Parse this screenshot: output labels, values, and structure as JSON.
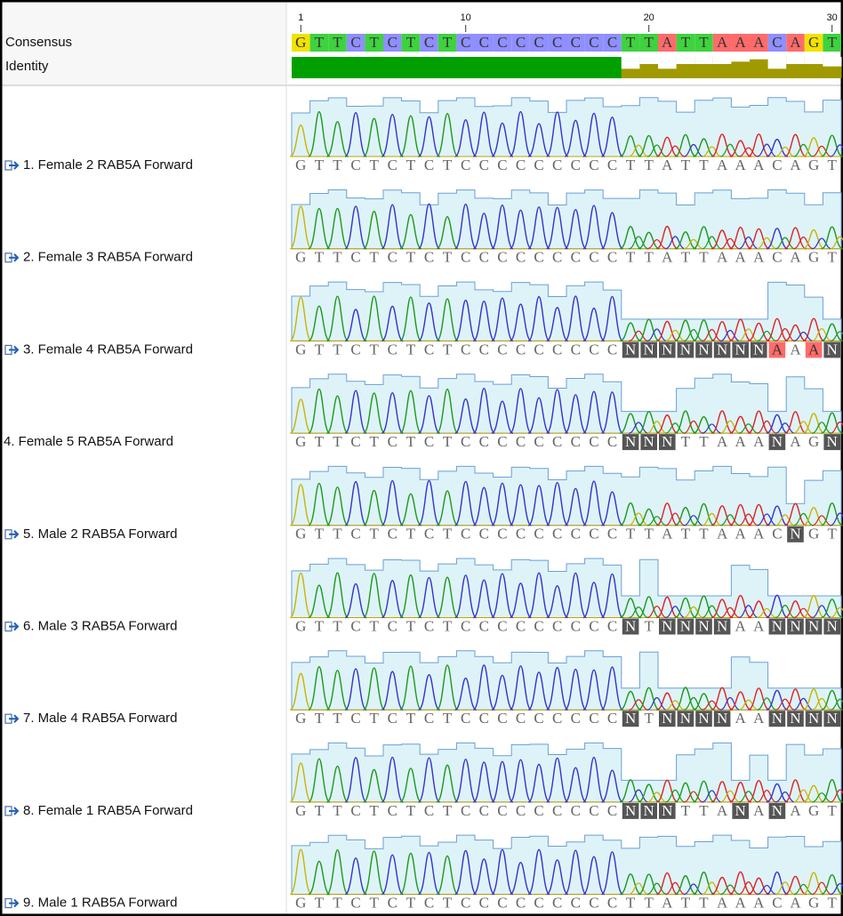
{
  "ruler": [
    1,
    10,
    20,
    30
  ],
  "consensus": {
    "label": "Consensus",
    "sequence": [
      "G",
      "T",
      "T",
      "C",
      "T",
      "C",
      "T",
      "C",
      "T",
      "C",
      "C",
      "C",
      "C",
      "C",
      "C",
      "C",
      "C",
      "C",
      "T",
      "T",
      "A",
      "T",
      "T",
      "A",
      "A",
      "A",
      "C",
      "A",
      "G",
      "T"
    ]
  },
  "identity": {
    "label": "Identity"
  },
  "tracks": [
    {
      "label": "1. Female 2 RAB5A Forward",
      "icon": true,
      "sequence": [
        "G",
        "T",
        "T",
        "C",
        "T",
        "C",
        "T",
        "C",
        "T",
        "C",
        "C",
        "C",
        "C",
        "C",
        "C",
        "C",
        "C",
        "C",
        "T",
        "T",
        "A",
        "T",
        "T",
        "A",
        "A",
        "A",
        "C",
        "A",
        "G",
        "T"
      ]
    },
    {
      "label": "2. Female 3 RAB5A Forward",
      "icon": true,
      "sequence": [
        "G",
        "T",
        "T",
        "C",
        "T",
        "C",
        "T",
        "C",
        "T",
        "C",
        "C",
        "C",
        "C",
        "C",
        "C",
        "C",
        "C",
        "C",
        "T",
        "T",
        "A",
        "T",
        "T",
        "A",
        "A",
        "A",
        "C",
        "A",
        "G",
        "T"
      ]
    },
    {
      "label": "3. Female 4 RAB5A Forward",
      "icon": true,
      "sequence": [
        "G",
        "T",
        "T",
        "C",
        "T",
        "C",
        "T",
        "C",
        "T",
        "C",
        "C",
        "C",
        "C",
        "C",
        "C",
        "C",
        "C",
        "C",
        "N",
        "N",
        "N",
        "N",
        "N",
        "N",
        "N",
        "N",
        "A",
        "A",
        "A",
        "N"
      ]
    },
    {
      "label": "4. Female 5 RAB5A Forward",
      "icon": false,
      "sequence": [
        "G",
        "T",
        "T",
        "C",
        "T",
        "C",
        "T",
        "C",
        "T",
        "C",
        "C",
        "C",
        "C",
        "C",
        "C",
        "C",
        "C",
        "C",
        "N",
        "N",
        "N",
        "T",
        "T",
        "A",
        "A",
        "A",
        "N",
        "A",
        "G",
        "N"
      ]
    },
    {
      "label": "5. Male 2 RAB5A Forward",
      "icon": true,
      "sequence": [
        "G",
        "T",
        "T",
        "C",
        "T",
        "C",
        "T",
        "C",
        "T",
        "C",
        "C",
        "C",
        "C",
        "C",
        "C",
        "C",
        "C",
        "C",
        "T",
        "T",
        "A",
        "T",
        "T",
        "A",
        "A",
        "A",
        "C",
        "N",
        "G",
        "T"
      ]
    },
    {
      "label": "6. Male 3 RAB5A Forward",
      "icon": true,
      "sequence": [
        "G",
        "T",
        "T",
        "C",
        "T",
        "C",
        "T",
        "C",
        "T",
        "C",
        "C",
        "C",
        "C",
        "C",
        "C",
        "C",
        "C",
        "C",
        "N",
        "T",
        "N",
        "N",
        "N",
        "N",
        "A",
        "A",
        "N",
        "N",
        "N",
        "N"
      ]
    },
    {
      "label": "7. Male 4 RAB5A Forward",
      "icon": true,
      "sequence": [
        "G",
        "T",
        "T",
        "C",
        "T",
        "C",
        "T",
        "C",
        "T",
        "C",
        "C",
        "C",
        "C",
        "C",
        "C",
        "C",
        "C",
        "C",
        "N",
        "T",
        "N",
        "N",
        "N",
        "N",
        "A",
        "A",
        "N",
        "N",
        "N",
        "N"
      ]
    },
    {
      "label": "8. Female 1 RAB5A Forward",
      "icon": true,
      "sequence": [
        "G",
        "T",
        "T",
        "C",
        "T",
        "C",
        "T",
        "C",
        "T",
        "C",
        "C",
        "C",
        "C",
        "C",
        "C",
        "C",
        "C",
        "C",
        "N",
        "N",
        "N",
        "T",
        "T",
        "A",
        "N",
        "A",
        "N",
        "A",
        "G",
        "T"
      ]
    },
    {
      "label": "9. Male 1 RAB5A Forward",
      "icon": true,
      "sequence": [
        "G",
        "T",
        "T",
        "C",
        "T",
        "C",
        "T",
        "C",
        "T",
        "C",
        "C",
        "C",
        "C",
        "C",
        "C",
        "C",
        "C",
        "C",
        "T",
        "T",
        "A",
        "T",
        "T",
        "A",
        "A",
        "A",
        "C",
        "A",
        "G",
        "T"
      ]
    }
  ]
}
